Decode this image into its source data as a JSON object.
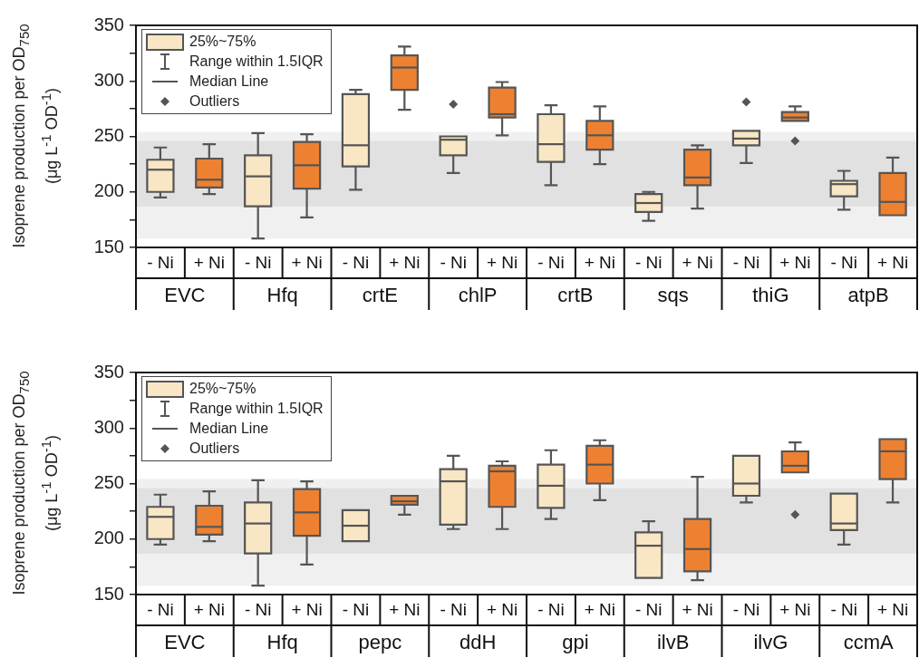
{
  "chart_data": [
    {
      "type": "box",
      "ylabel": "Isoprene production per OD$_{750}$\n(μg L$^{-1}$ OD$^{-1}$)",
      "categories": [
        "EVC",
        "Hfq",
        "crtE",
        "chlP",
        "crtB",
        "sqs",
        "thiG",
        "atpB"
      ],
      "series": [
        {
          "name": "- Ni",
          "color": "#f8e6c4",
          "boxes": [
            {
              "low": 195,
              "q1": 200,
              "median": 220,
              "q3": 229,
              "high": 240
            },
            {
              "low": 158,
              "q1": 187,
              "median": 214,
              "q3": 233,
              "high": 253
            },
            {
              "low": 202,
              "q1": 223,
              "median": 242,
              "q3": 288,
              "high": 292
            },
            {
              "low": 217,
              "q1": 233,
              "median": 247,
              "q3": 250,
              "high": 250,
              "outliers": [
                279
              ]
            },
            {
              "low": 206,
              "q1": 227,
              "median": 243,
              "q3": 270,
              "high": 278
            },
            {
              "low": 174,
              "q1": 182,
              "median": 190,
              "q3": 198,
              "high": 200
            },
            {
              "low": 226,
              "q1": 242,
              "median": 248,
              "q3": 255,
              "high": 255,
              "outliers": [
                281
              ]
            },
            {
              "low": 184,
              "q1": 196,
              "median": 207,
              "q3": 210,
              "high": 219
            }
          ]
        },
        {
          "name": "+ Ni",
          "color": "#ee8131",
          "boxes": [
            {
              "low": 198,
              "q1": 204,
              "median": 211,
              "q3": 230,
              "high": 243
            },
            {
              "low": 177,
              "q1": 203,
              "median": 224,
              "q3": 245,
              "high": 252
            },
            {
              "low": 274,
              "q1": 292,
              "median": 312,
              "q3": 323,
              "high": 331
            },
            {
              "low": 251,
              "q1": 267,
              "median": 270,
              "q3": 294,
              "high": 299
            },
            {
              "low": 225,
              "q1": 238,
              "median": 251,
              "q3": 264,
              "high": 277
            },
            {
              "low": 185,
              "q1": 206,
              "median": 213,
              "q3": 238,
              "high": 242
            },
            {
              "low": 264,
              "q1": 264,
              "median": 267,
              "q3": 272,
              "high": 277,
              "outliers": [
                246
              ]
            },
            {
              "low": 179,
              "q1": 179,
              "median": 191,
              "q3": 217,
              "high": 231
            }
          ]
        }
      ],
      "ylim": [
        150,
        350
      ],
      "yticks": [
        150,
        {
          "value": 175,
          "label": null
        },
        200,
        {
          "value": 225,
          "label": null
        },
        250,
        {
          "value": 275,
          "label": null
        },
        300,
        {
          "value": 325,
          "label": null
        },
        350
      ],
      "bands": [
        {
          "axis": "y",
          "from": 158,
          "to": 254,
          "color": "#f0f0f0"
        },
        {
          "axis": "y",
          "from": 187,
          "to": 246,
          "color": "#e1e1e1"
        }
      ],
      "annotations": [
        "25%~75%",
        "Range within 1.5IQR",
        "Median Line",
        "Outliers"
      ]
    },
    {
      "type": "box",
      "ylabel": "Isoprene production per OD$_{750}$\n(μg L$^{-1}$ OD$^{-1}$)",
      "categories": [
        "EVC",
        "Hfq",
        "pepc",
        "ddH",
        "gpi",
        "ilvB",
        "ilvG",
        "ccmA"
      ],
      "series": [
        {
          "name": "- Ni",
          "color": "#f8e6c4",
          "boxes": [
            {
              "low": 195,
              "q1": 200,
              "median": 220,
              "q3": 229,
              "high": 240
            },
            {
              "low": 158,
              "q1": 187,
              "median": 214,
              "q3": 233,
              "high": 253
            },
            {
              "low": 198,
              "q1": 198,
              "median": 212,
              "q3": 226,
              "high": 226
            },
            {
              "low": 209,
              "q1": 213,
              "median": 252,
              "q3": 263,
              "high": 275
            },
            {
              "low": 218,
              "q1": 228,
              "median": 248,
              "q3": 267,
              "high": 280
            },
            {
              "low": 165,
              "q1": 165,
              "median": 194,
              "q3": 206,
              "high": 216
            },
            {
              "low": 233,
              "q1": 239,
              "median": 250,
              "q3": 275,
              "high": 275
            },
            {
              "low": 195,
              "q1": 208,
              "median": 214,
              "q3": 241,
              "high": 241
            }
          ]
        },
        {
          "name": "+ Ni",
          "color": "#ee8131",
          "boxes": [
            {
              "low": 198,
              "q1": 204,
              "median": 211,
              "q3": 230,
              "high": 243
            },
            {
              "low": 177,
              "q1": 203,
              "median": 224,
              "q3": 245,
              "high": 252
            },
            {
              "low": 222,
              "q1": 231,
              "median": 234,
              "q3": 239,
              "high": 239
            },
            {
              "low": 209,
              "q1": 229,
              "median": 261,
              "q3": 266,
              "high": 270
            },
            {
              "low": 235,
              "q1": 250,
              "median": 267,
              "q3": 284,
              "high": 289
            },
            {
              "low": 163,
              "q1": 171,
              "median": 191,
              "q3": 218,
              "high": 256
            },
            {
              "low": 260,
              "q1": 260,
              "median": 266,
              "q3": 279,
              "high": 287,
              "outliers": [
                222
              ]
            },
            {
              "low": 233,
              "q1": 254,
              "median": 279,
              "q3": 290,
              "high": 290
            }
          ]
        }
      ],
      "ylim": [
        150,
        350
      ],
      "yticks": [
        150,
        {
          "value": 175,
          "label": null
        },
        200,
        {
          "value": 225,
          "label": null
        },
        250,
        {
          "value": 275,
          "label": null
        },
        300,
        {
          "value": 325,
          "label": null
        },
        350
      ],
      "bands": [
        {
          "axis": "y",
          "from": 158,
          "to": 254,
          "color": "#f0f0f0"
        },
        {
          "axis": "y",
          "from": 187,
          "to": 246,
          "color": "#e1e1e1"
        }
      ],
      "annotations": [
        "25%~75%",
        "Range within 1.5IQR",
        "Median Line",
        "Outliers"
      ]
    }
  ]
}
